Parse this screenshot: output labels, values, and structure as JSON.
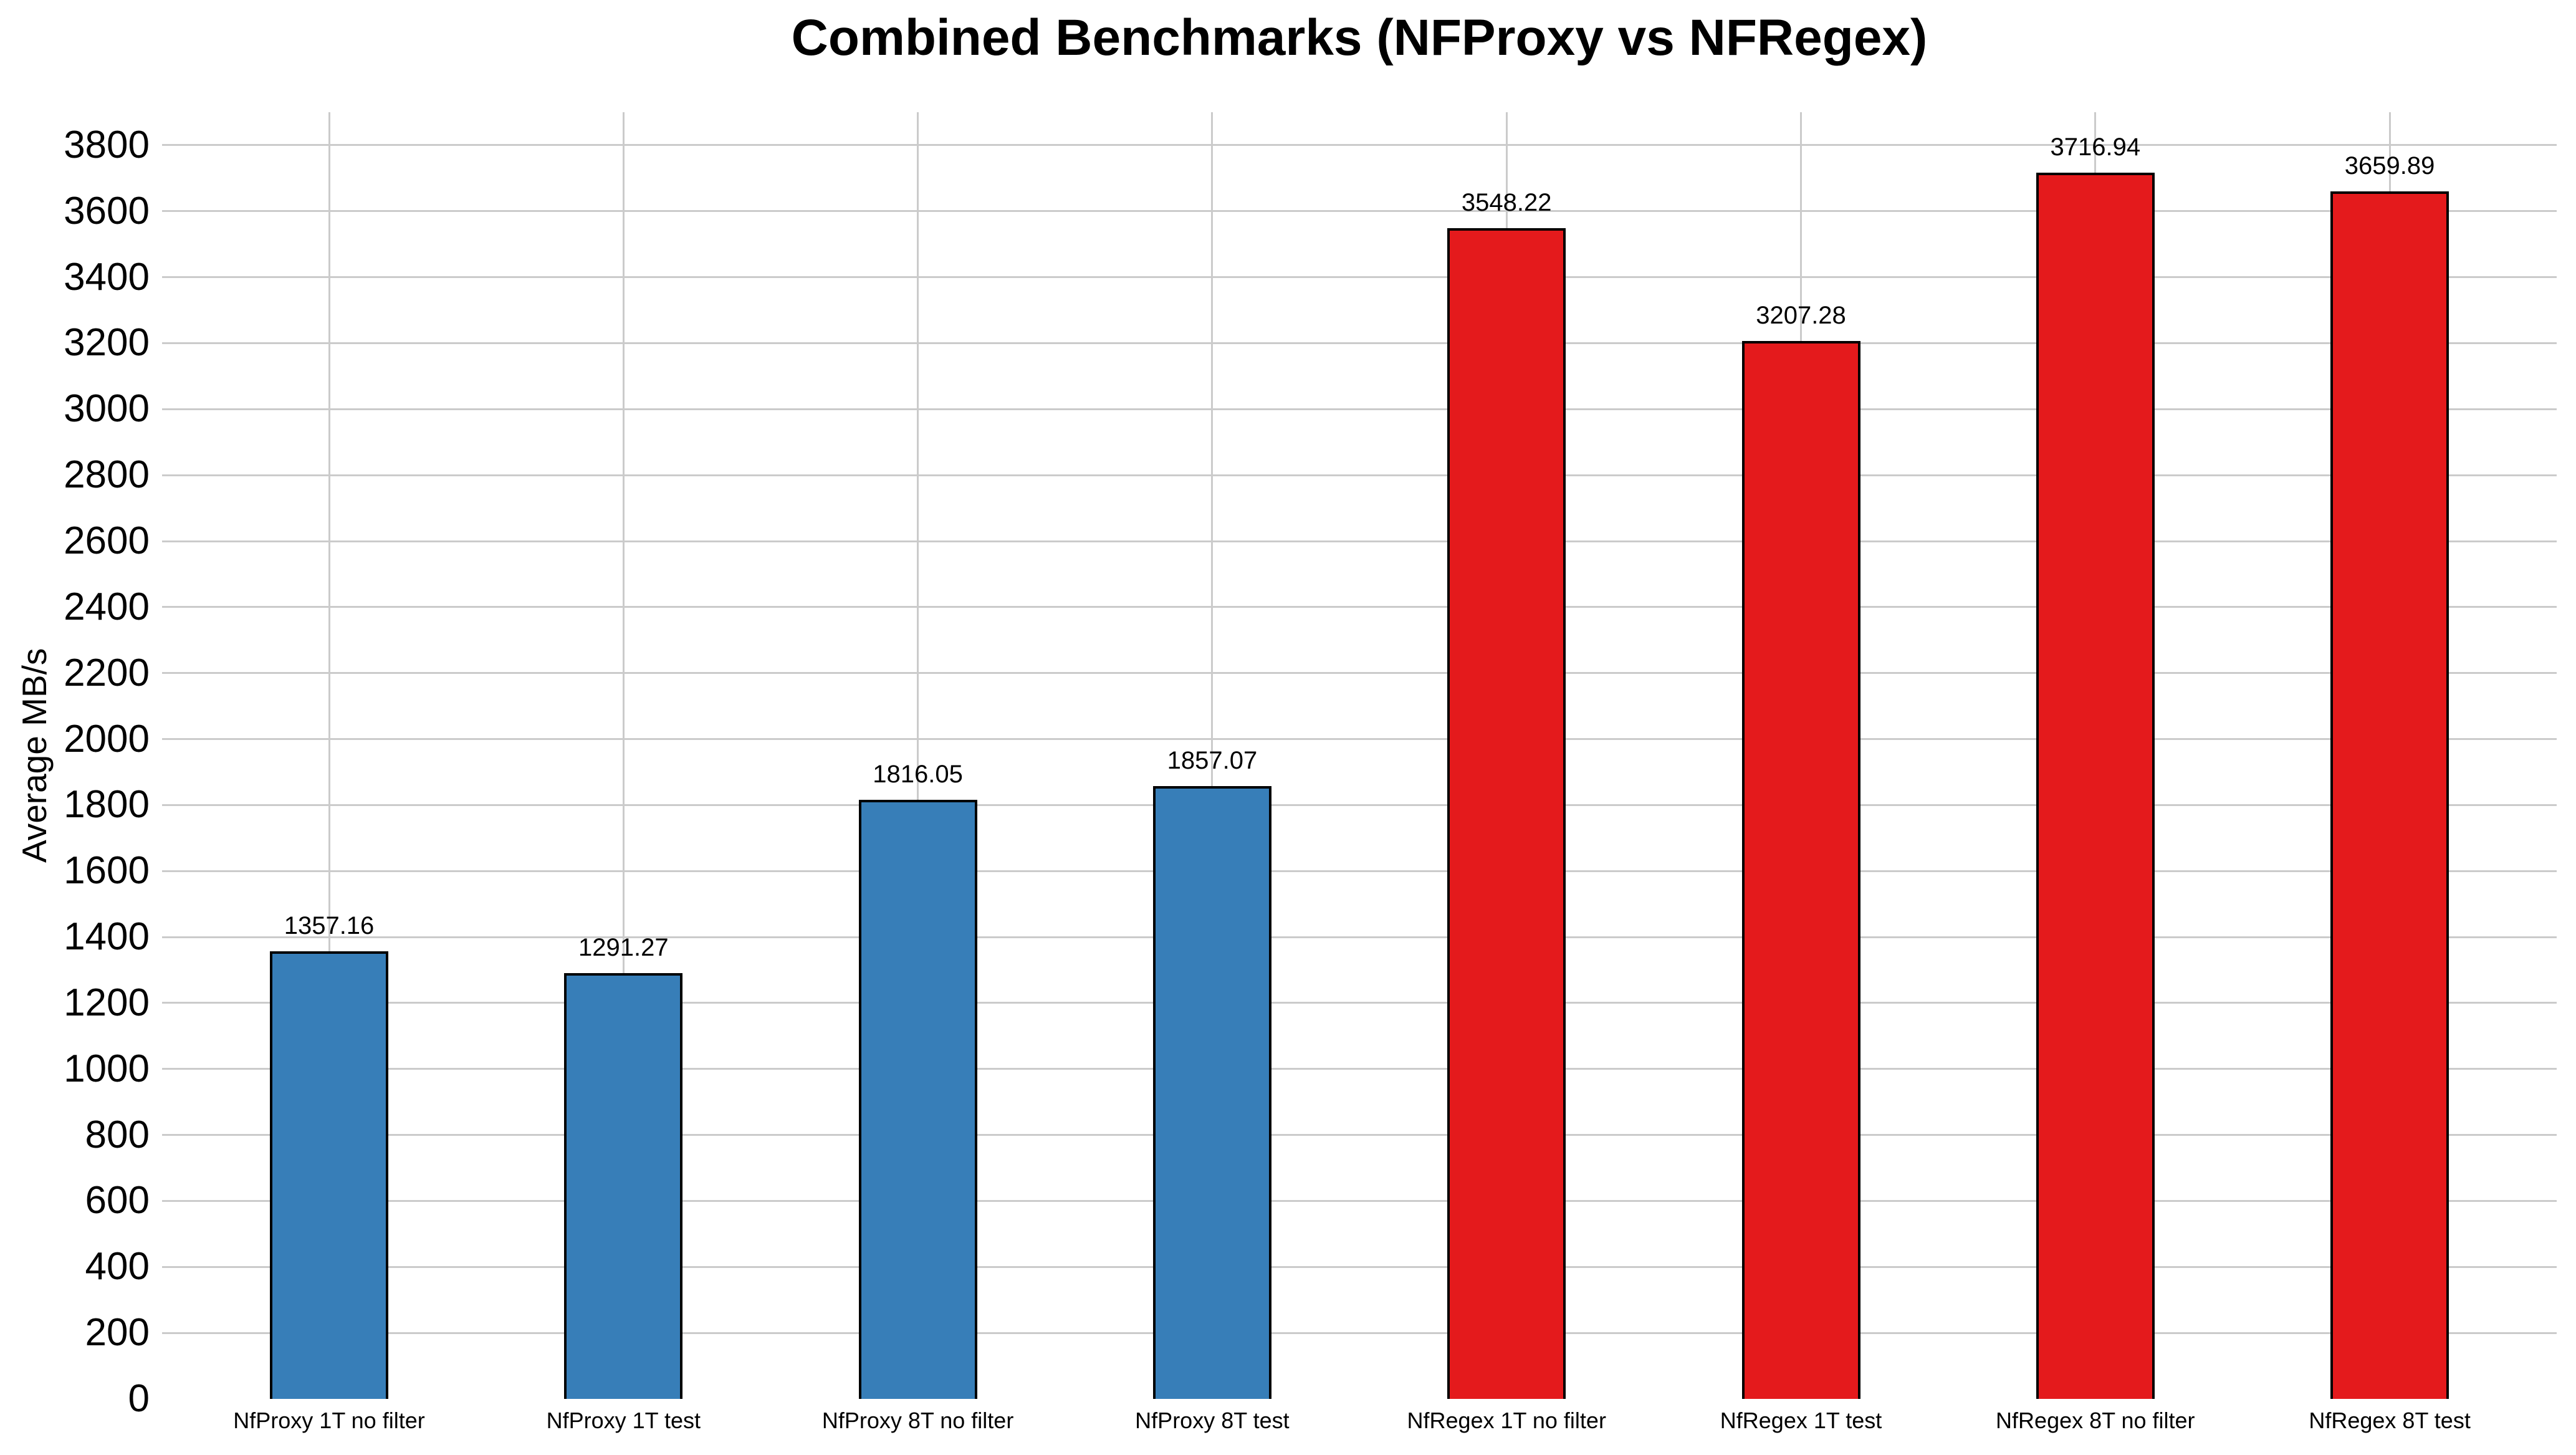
{
  "page": {
    "background": "#ffffff"
  },
  "chart_data": {
    "type": "bar",
    "title": "Combined Benchmarks (NFProxy vs NFRegex)",
    "ylabel": "Average MB/s",
    "xlabel": "",
    "ylim": [
      0,
      3900
    ],
    "yticks": [
      0,
      200,
      400,
      600,
      800,
      1000,
      1200,
      1400,
      1600,
      1800,
      2000,
      2200,
      2400,
      2600,
      2800,
      3000,
      3200,
      3400,
      3600,
      3800
    ],
    "categories": [
      "NfProxy 1T no filter",
      "NfProxy 1T test",
      "NfProxy 8T no filter",
      "NfProxy 8T test",
      "NfRegex 1T no filter",
      "NfRegex 1T test",
      "NfRegex 8T no filter",
      "NfRegex 8T test"
    ],
    "values": [
      1357.16,
      1291.27,
      1816.05,
      1857.07,
      3548.22,
      3207.28,
      3716.94,
      3659.89
    ],
    "value_labels": [
      "1357.16",
      "1291.27",
      "1816.05",
      "1857.07",
      "3548.22",
      "3207.28",
      "3716.94",
      "3659.89"
    ],
    "series": [
      {
        "name": "NFProxy",
        "color": "#377eb8",
        "indices": [
          0,
          1,
          2,
          3
        ]
      },
      {
        "name": "NFRegex",
        "color": "#e41a1c",
        "indices": [
          4,
          5,
          6,
          7
        ]
      }
    ],
    "bar_colors": [
      "#377eb8",
      "#377eb8",
      "#377eb8",
      "#377eb8",
      "#e41a1c",
      "#e41a1c",
      "#e41a1c",
      "#e41a1c"
    ],
    "bar_edge_color": "#000000",
    "grid": true,
    "grid_color": "#cbcbcb",
    "legend": "none",
    "text_color": "#000000"
  }
}
